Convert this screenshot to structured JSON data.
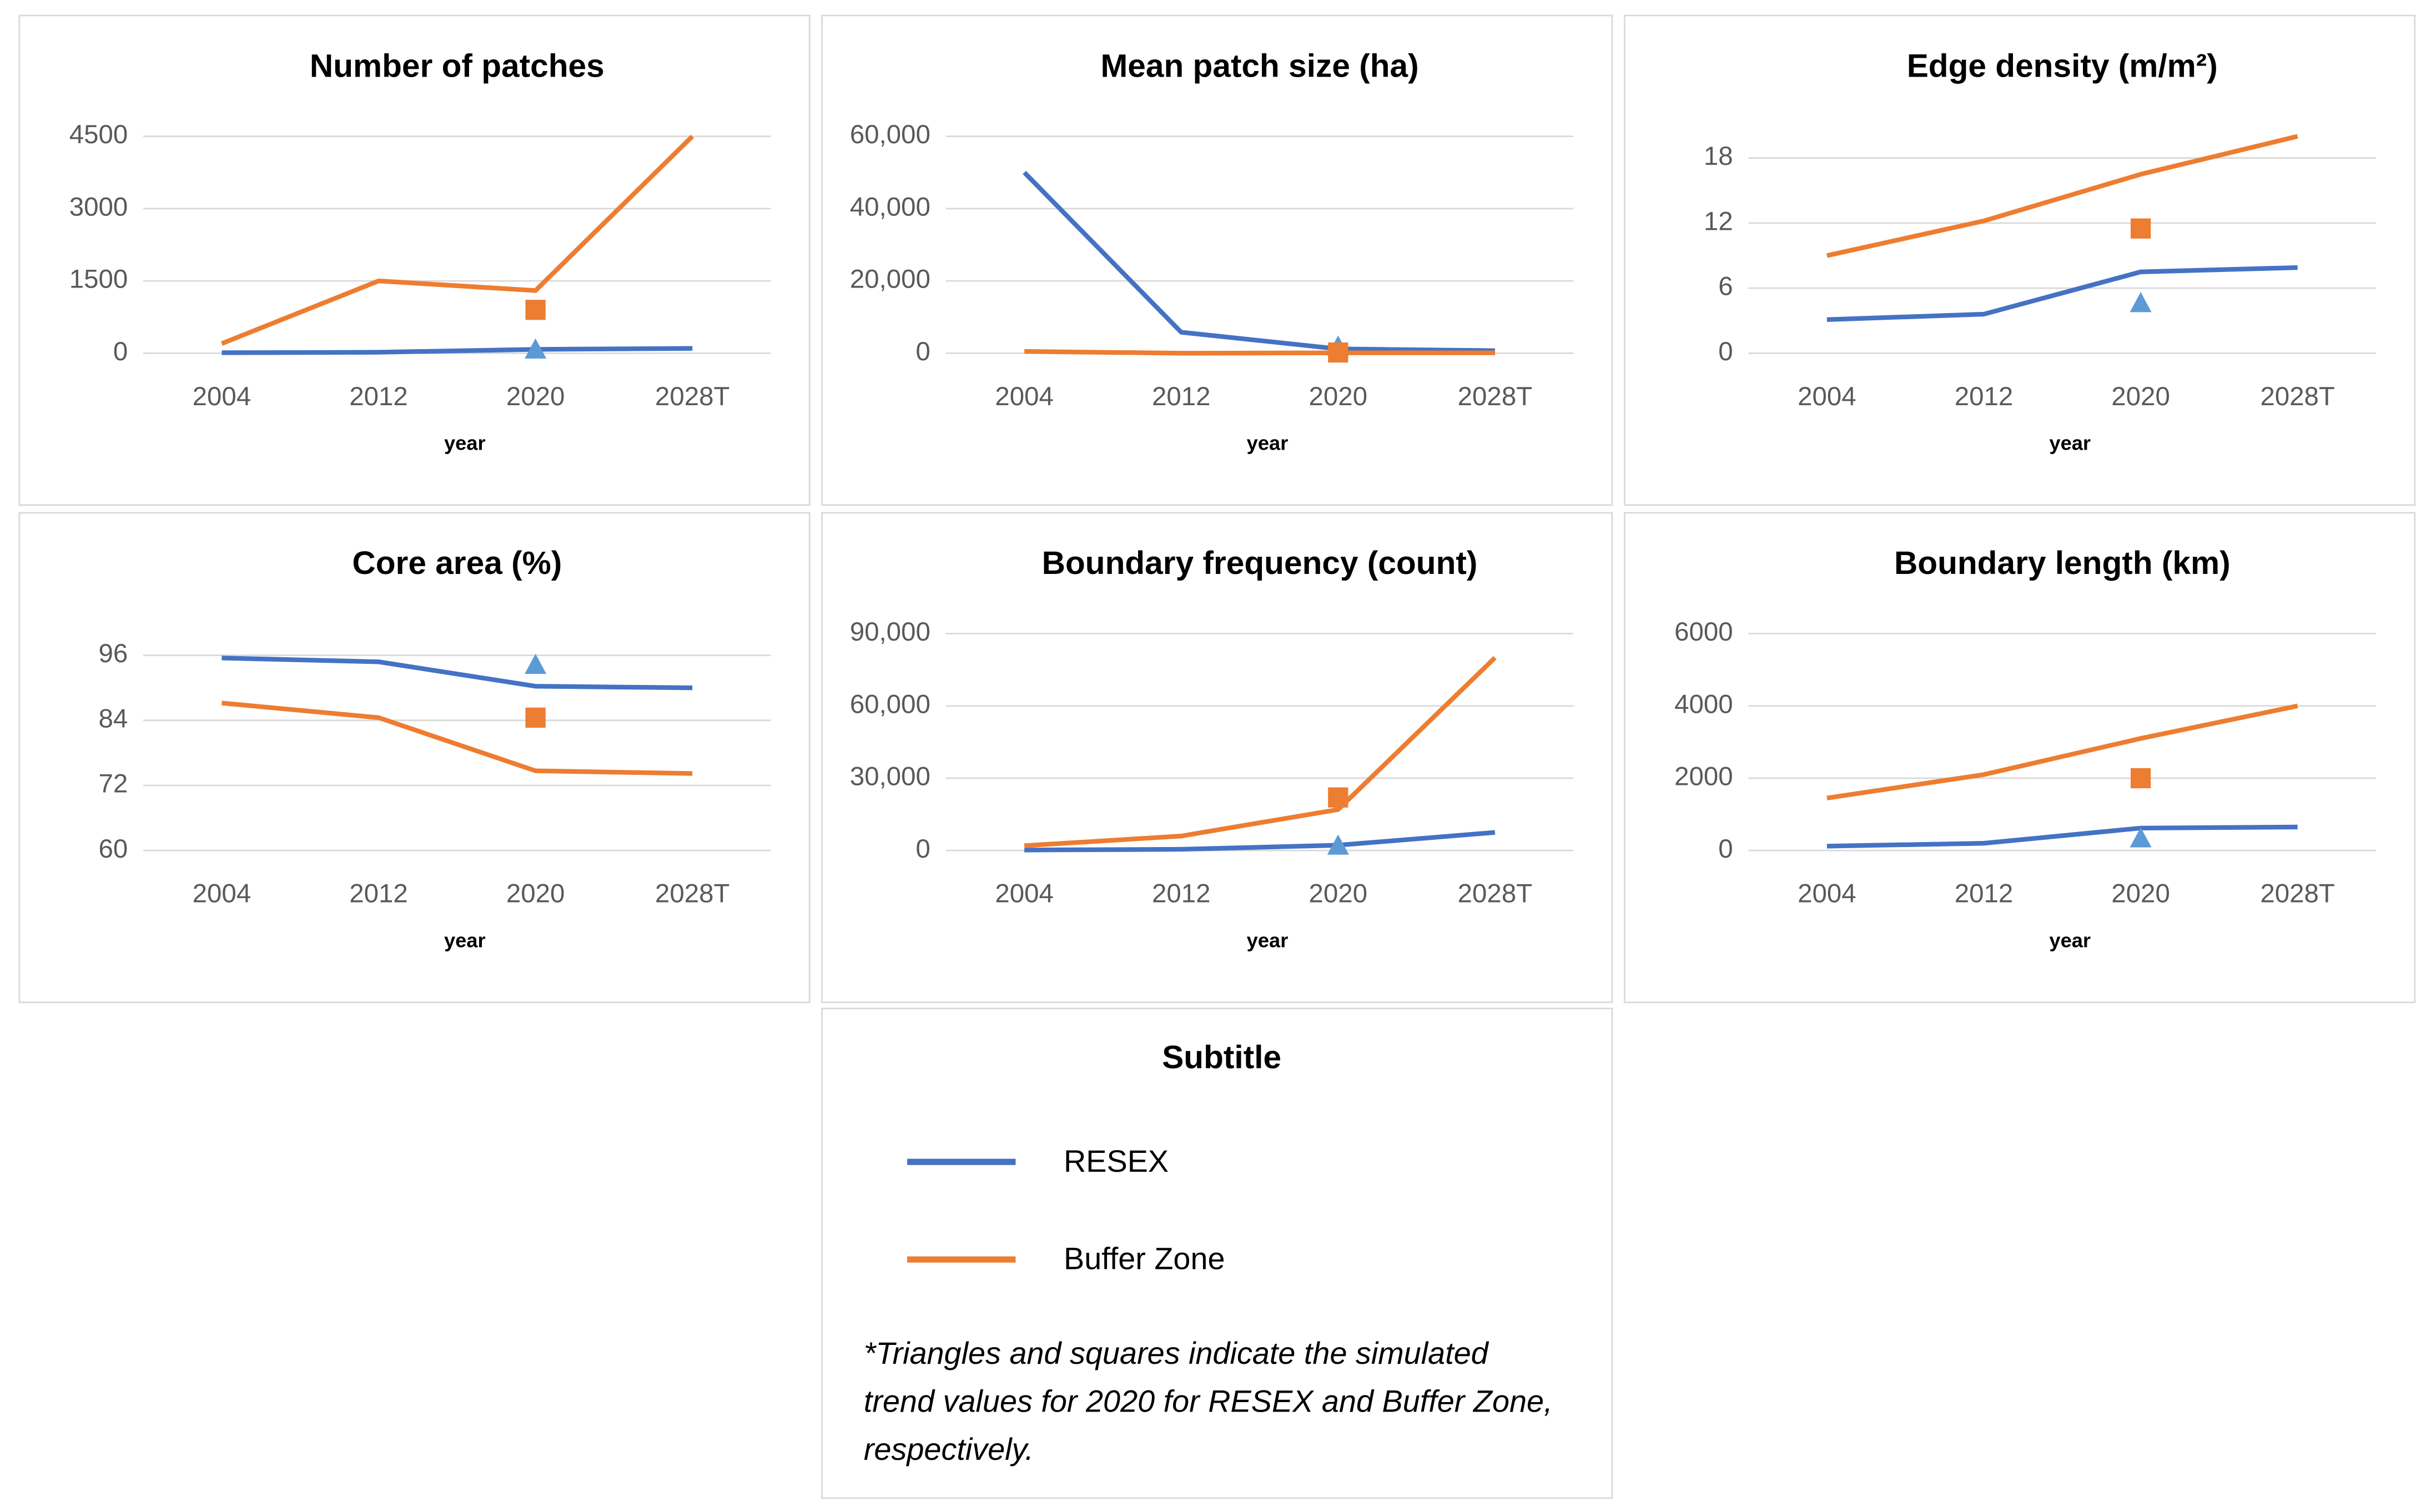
{
  "chart_data": [
    {
      "type": "line",
      "title": "Number of patches",
      "x_label": "year",
      "categories": [
        "2004",
        "2012",
        "2020",
        "2028T"
      ],
      "series": [
        {
          "name": "RESEX",
          "color": "#4472c4",
          "values": [
            10,
            20,
            80,
            100
          ]
        },
        {
          "name": "Buffer Zone",
          "color": "#ed7d31",
          "values": [
            200,
            1500,
            1300,
            4500
          ]
        },
        {
          "marker": "triangle",
          "color": "#5b9bd5",
          "values": [
            null,
            null,
            50,
            null
          ]
        },
        {
          "marker": "square",
          "color": "#ed7d31",
          "values": [
            null,
            null,
            900,
            null
          ]
        }
      ],
      "ylim": [
        0,
        4500
      ],
      "yticks": [
        0,
        1500,
        3000,
        4500
      ],
      "grid": true
    },
    {
      "type": "line",
      "title": "Mean patch size (ha)",
      "x_label": "year",
      "categories": [
        "2004",
        "2012",
        "2020",
        "2028T"
      ],
      "series": [
        {
          "name": "RESEX",
          "color": "#4472c4",
          "values": [
            50000,
            5800,
            1200,
            700
          ]
        },
        {
          "name": "Buffer Zone",
          "color": "#ed7d31",
          "values": [
            500,
            0,
            100,
            100
          ]
        },
        {
          "marker": "triangle",
          "color": "#5b9bd5",
          "values": [
            null,
            null,
            1500,
            null
          ]
        },
        {
          "marker": "square",
          "color": "#ed7d31",
          "values": [
            null,
            null,
            200,
            null
          ]
        }
      ],
      "ylim": [
        0,
        60000
      ],
      "yticks": [
        0,
        {
          "value": 20000,
          "label": "20,000"
        },
        {
          "value": 40000,
          "label": "40,000"
        },
        {
          "value": 60000,
          "label": "60,000"
        }
      ],
      "grid": true
    },
    {
      "type": "line",
      "title": "Edge density (m/m²)",
      "x_label": "year",
      "categories": [
        "2004",
        "2012",
        "2020",
        "2028T"
      ],
      "series": [
        {
          "name": "RESEX",
          "color": "#4472c4",
          "values": [
            3.1,
            3.6,
            7.5,
            7.9
          ]
        },
        {
          "name": "Buffer Zone",
          "color": "#ed7d31",
          "values": [
            9,
            12.2,
            16.5,
            20
          ]
        },
        {
          "marker": "triangle",
          "color": "#5b9bd5",
          "values": [
            null,
            null,
            4.5,
            null
          ]
        },
        {
          "marker": "square",
          "color": "#ed7d31",
          "values": [
            null,
            null,
            11.5,
            null
          ]
        }
      ],
      "ylim": [
        0,
        20
      ],
      "yticks": [
        0,
        6,
        12,
        18
      ],
      "grid": true
    },
    {
      "type": "line",
      "title": "Core area (%)",
      "x_label": "year",
      "categories": [
        "2004",
        "2012",
        "2020",
        "2028T"
      ],
      "series": [
        {
          "name": "RESEX",
          "color": "#4472c4",
          "values": [
            95.5,
            94.8,
            90.3,
            90
          ]
        },
        {
          "name": "Buffer Zone",
          "color": "#ed7d31",
          "values": [
            87.2,
            84.5,
            74.7,
            74.2
          ]
        },
        {
          "marker": "triangle",
          "color": "#5b9bd5",
          "values": [
            null,
            null,
            94,
            null
          ]
        },
        {
          "marker": "square",
          "color": "#ed7d31",
          "values": [
            null,
            null,
            84.5,
            null
          ]
        }
      ],
      "ylim": [
        60,
        100
      ],
      "yticks": [
        60,
        72,
        84,
        96
      ],
      "grid": true
    },
    {
      "type": "line",
      "title": "Boundary frequency (count)",
      "x_label": "year",
      "categories": [
        "2004",
        "2012",
        "2020",
        "2028T"
      ],
      "series": [
        {
          "name": "RESEX",
          "color": "#4472c4",
          "values": [
            200,
            500,
            2200,
            7500
          ]
        },
        {
          "name": "Buffer Zone",
          "color": "#ed7d31",
          "values": [
            2000,
            6000,
            17000,
            80000
          ]
        },
        {
          "marker": "triangle",
          "color": "#5b9bd5",
          "values": [
            null,
            null,
            1500,
            null
          ]
        },
        {
          "marker": "square",
          "color": "#ed7d31",
          "values": [
            null,
            null,
            22000,
            null
          ]
        }
      ],
      "ylim": [
        0,
        90000
      ],
      "yticks": [
        0,
        {
          "value": 30000,
          "label": "30,000"
        },
        {
          "value": 60000,
          "label": "60,000"
        },
        {
          "value": 90000,
          "label": "90,000"
        }
      ],
      "grid": true
    },
    {
      "type": "line",
      "title": "Boundary length (km)",
      "x_label": "year",
      "categories": [
        "2004",
        "2012",
        "2020",
        "2028T"
      ],
      "series": [
        {
          "name": "RESEX",
          "color": "#4472c4",
          "values": [
            120,
            200,
            620,
            650
          ]
        },
        {
          "name": "Buffer Zone",
          "color": "#ed7d31",
          "values": [
            1450,
            2100,
            3100,
            4000
          ]
        },
        {
          "marker": "triangle",
          "color": "#5b9bd5",
          "values": [
            null,
            null,
            300,
            null
          ]
        },
        {
          "marker": "square",
          "color": "#ed7d31",
          "values": [
            null,
            null,
            2000,
            null
          ]
        }
      ],
      "ylim": [
        0,
        6000
      ],
      "yticks": [
        0,
        2000,
        4000,
        6000
      ],
      "grid": true
    }
  ],
  "legend": {
    "title": "Subtitle",
    "note": [
      "*Triangles and squares indicate the simulated",
      "trend values for 2020 for RESEX and Buffer Zone,",
      "respectively."
    ]
  }
}
